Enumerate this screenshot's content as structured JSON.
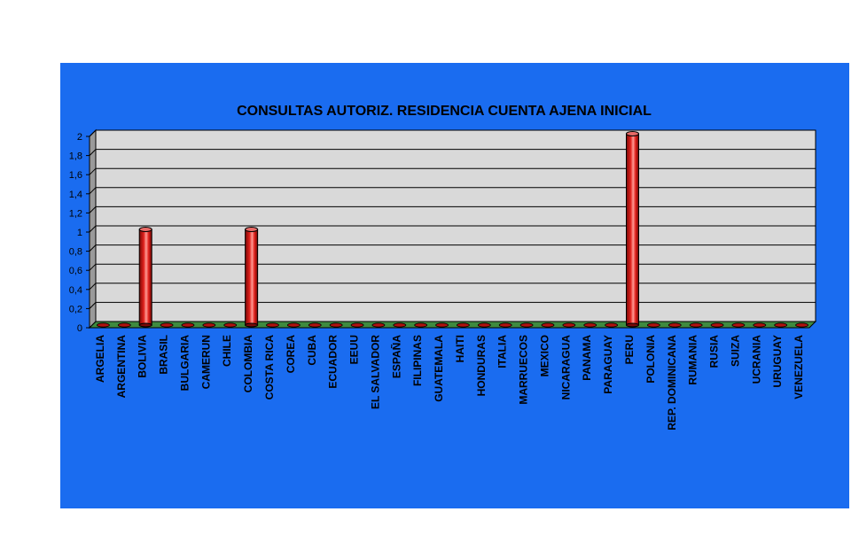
{
  "colors": {
    "panel_background": "#1a6cf0",
    "plot_background": "#d9d9d9",
    "bar_fill": "#e0201b",
    "floor": "#3f8a3f"
  },
  "chart_data": {
    "type": "bar",
    "title": "CONSULTAS AUTORIZ. RESIDENCIA CUENTA AJENA INICIAL",
    "xlabel": "",
    "ylabel": "",
    "ylim": [
      0,
      2
    ],
    "yticks": [
      "0",
      "0,2",
      "0,4",
      "0,6",
      "0,8",
      "1",
      "1,2",
      "1,4",
      "1,6",
      "1,8",
      "2"
    ],
    "grid": true,
    "legend": "none",
    "style": "3d-cylinder",
    "categories": [
      "ARGELIA",
      "ARGENTINA",
      "BOLIVIA",
      "BRASIL",
      "BULGARIA",
      "CAMERUN",
      "CHILE",
      "COLOMBIA",
      "COSTA RICA",
      "COREA",
      "CUBA",
      "ECUADOR",
      "EEUU",
      "EL SALVADOR",
      "ESPAÑA",
      "FILIPINAS",
      "GUATEMALA",
      "HAITI",
      "HONDURAS",
      "ITALIA",
      "MARRUECOS",
      "MEXICO",
      "NICARAGUA",
      "PANAMA",
      "PARAGUAY",
      "PERU",
      "POLONIA",
      "REP. DOMINICANA",
      "RUMANIA",
      "RUSIA",
      "SUIZA",
      "UCRANIA",
      "URUGUAY",
      "VENEZUELA"
    ],
    "values": [
      0,
      0,
      1,
      0,
      0,
      0,
      0,
      1,
      0,
      0,
      0,
      0,
      0,
      0,
      0,
      0,
      0,
      0,
      0,
      0,
      0,
      0,
      0,
      0,
      0,
      2,
      0,
      0,
      0,
      0,
      0,
      0,
      0,
      0
    ]
  }
}
